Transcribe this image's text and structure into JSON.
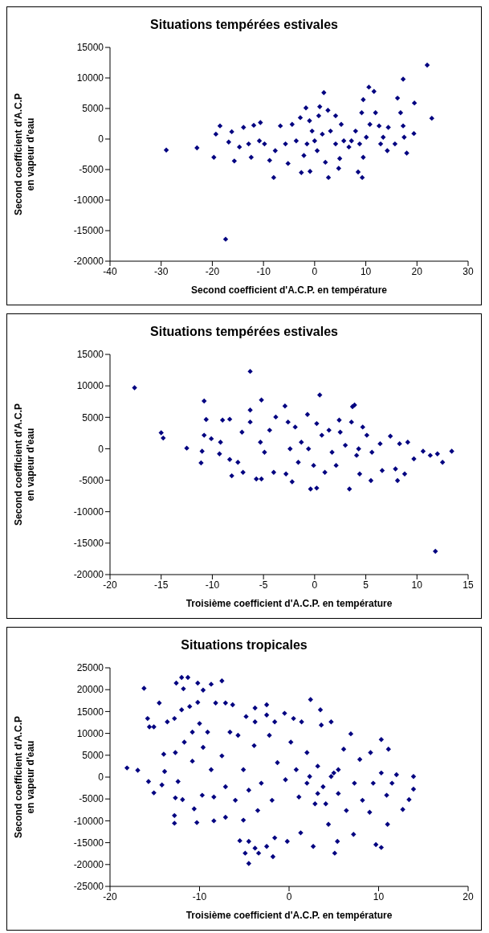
{
  "chart_data": [
    {
      "type": "scatter",
      "title": "Situations tempérées estivales",
      "xlabel": "Second coefficient d'A.C.P. en température",
      "ylabel": "Second coefficient d'A.C.P\nen vapeur d'eau",
      "xlim": [
        -40,
        30
      ],
      "xticks": [
        -40,
        -30,
        -20,
        -10,
        0,
        10,
        20,
        30
      ],
      "ylim": [
        -20000,
        15000
      ],
      "yticks": [
        -20000,
        -15000,
        -10000,
        -5000,
        0,
        5000,
        10000,
        15000
      ],
      "grid": false,
      "legend": false,
      "marker": "diamond",
      "series": [
        {
          "color": "#000080",
          "x": [
            -29,
            -23,
            -17.4,
            22,
            17.3,
            22.9,
            19.5,
            19.4,
            16.2,
            10.6,
            11.6,
            1.8,
            -1.7,
            1,
            2.6,
            9.5,
            9.2,
            11.9,
            16.8,
            18,
            -8,
            -2.6,
            -0.9,
            2.7,
            4.7,
            9.3,
            8.5,
            -18.5,
            -19.3,
            -19.7,
            -16.8,
            -15.7,
            -16.2,
            -13.9,
            -11.9,
            -10.6,
            -14.7,
            -12.4,
            -9.8,
            -8.8,
            -6.7,
            -5.2,
            -4.4,
            -2.8,
            -1,
            0,
            -0.5,
            0.5,
            1.5,
            0.8,
            2.1,
            4.1,
            5.2,
            4.9,
            5.7,
            6.7,
            8,
            8.8,
            9.5,
            10.1,
            10.8,
            12.9,
            12.6,
            14.2,
            14.4,
            15.7,
            17.5,
            17.3,
            13.4,
            -3.6,
            -5.7,
            -7.7,
            -10.8,
            -12.9,
            -1.5,
            3.1,
            7.2,
            -2.1,
            4.1
          ],
          "values": [
            -1800,
            -1450,
            -16400,
            12100,
            9800,
            3400,
            5900,
            900,
            6700,
            8500,
            7800,
            7600,
            5100,
            5300,
            4700,
            6450,
            4300,
            4300,
            4300,
            -2300,
            -6300,
            -5500,
            -5300,
            -6300,
            -4800,
            -6300,
            -5400,
            2150,
            800,
            -3000,
            -500,
            -3600,
            1200,
            1900,
            2250,
            2700,
            -1300,
            -3000,
            -800,
            -3500,
            2150,
            -4000,
            2400,
            3500,
            3000,
            -300,
            1300,
            -1900,
            800,
            3800,
            -3800,
            3800,
            2400,
            -3200,
            -300,
            -1300,
            1300,
            -800,
            -3000,
            300,
            2400,
            -800,
            2150,
            -1900,
            1900,
            -800,
            300,
            2150,
            300,
            -300,
            -800,
            -1900,
            -300,
            -800,
            -800,
            1300,
            -300,
            -2700,
            -800
          ]
        }
      ]
    },
    {
      "type": "scatter",
      "title": "Situations tempérées estivales",
      "xlabel": "Troisième coefficient d'A.C.P. en température",
      "ylabel": "Second coefficient d'A.C.P\nen vapeur d'eau",
      "xlim": [
        -20,
        15
      ],
      "xticks": [
        -20,
        -15,
        -10,
        -5,
        0,
        5,
        10,
        15
      ],
      "ylim": [
        -20000,
        15000
      ],
      "yticks": [
        -20000,
        -15000,
        -10000,
        -5000,
        0,
        5000,
        10000,
        15000
      ],
      "grid": false,
      "legend": false,
      "marker": "diamond",
      "series": [
        {
          "color": "#000080",
          "x": [
            -17.6,
            -15,
            -14.8,
            -12.5,
            -11.1,
            -10.8,
            -10.6,
            -10.8,
            -10.1,
            -11,
            -9.3,
            -9.2,
            -9,
            -8.3,
            -8.1,
            -8.3,
            -7.5,
            -7,
            -7.1,
            -6.3,
            -6.3,
            -6.3,
            -5.7,
            -5.2,
            -5.2,
            -5.3,
            -4.9,
            -4,
            -3.8,
            -4.4,
            -2.9,
            -2.6,
            -2.8,
            -2.2,
            -1.9,
            -1.3,
            -1.6,
            -0.7,
            -0.4,
            0.2,
            -0.6,
            0.2,
            0.5,
            -0.1,
            1,
            0.7,
            1.4,
            1.7,
            2.4,
            2.5,
            2.1,
            3,
            3.4,
            3.7,
            3.9,
            3.6,
            4.1,
            4.4,
            4.7,
            5.1,
            5.5,
            5.6,
            6.4,
            6.6,
            7.4,
            7.9,
            8.1,
            8.3,
            8.8,
            9.1,
            9.7,
            10.6,
            11.3,
            12,
            12.5,
            13.4,
            11.8,
            4.3,
            -2.4
          ],
          "values": [
            9700,
            2550,
            1700,
            100,
            -2250,
            7600,
            4650,
            2150,
            1600,
            -400,
            -800,
            1050,
            4550,
            4700,
            -4300,
            -1700,
            -2150,
            -3750,
            2650,
            12300,
            6150,
            4250,
            -4800,
            -4800,
            7750,
            1050,
            -550,
            -3750,
            5050,
            2950,
            6800,
            4250,
            -4000,
            -5250,
            3450,
            1050,
            -2150,
            5450,
            -6400,
            -6250,
            0,
            4000,
            8550,
            -2650,
            -3750,
            2150,
            2950,
            -550,
            4550,
            2650,
            -2650,
            550,
            -6400,
            6700,
            6950,
            4250,
            -1050,
            -4000,
            3450,
            2150,
            -5050,
            -550,
            800,
            -3450,
            2000,
            -3200,
            -5050,
            800,
            -4000,
            1050,
            -1600,
            -400,
            -1050,
            -800,
            -2150,
            -400,
            -16300,
            0,
            0
          ]
        }
      ]
    },
    {
      "type": "scatter",
      "title": "Situations tropicales",
      "xlabel": "Troisième coefficient d'A.C.P. en température",
      "ylabel": "Second coefficient d'A.C.P\nen vapeur d'eau",
      "xlim": [
        -20,
        20
      ],
      "xticks": [
        -20,
        -10,
        0,
        10,
        20
      ],
      "ylim": [
        -25000,
        25000
      ],
      "yticks": [
        -25000,
        -20000,
        -15000,
        -10000,
        -5000,
        0,
        5000,
        10000,
        15000,
        20000,
        25000
      ],
      "grid": false,
      "legend": false,
      "marker": "diamond",
      "series": [
        {
          "color": "#000080",
          "x": [
            -18.1,
            -16.9,
            -16.2,
            -15.7,
            -15.1,
            -15.8,
            -15.6,
            -15.1,
            -14.5,
            -14.2,
            -14,
            -13.9,
            -12.6,
            -12,
            -11.3,
            -11.8,
            -12.8,
            -13.6,
            -12.7,
            -12.8,
            -12.8,
            -12.7,
            -12.4,
            -11.9,
            -11.7,
            -12,
            -11.1,
            -10.2,
            -9.6,
            -8.7,
            -10.2,
            -10.3,
            -10.6,
            -10.8,
            -10,
            -10.8,
            -9.6,
            -9.7,
            -9.1,
            -8.7,
            -8.4,
            -8.2,
            -8.4,
            -7.5,
            -7.5,
            -7.1,
            -6.3,
            -6.6,
            -7.1,
            -7.1,
            -6,
            -5.7,
            -5.5,
            -5.1,
            -4.9,
            -4.5,
            -4.5,
            -4.8,
            -5.1,
            -4.5,
            -3.8,
            -3.8,
            -3.8,
            -3.4,
            -3.5,
            -3.9,
            -3.1,
            -2.5,
            -2.5,
            -2.5,
            -1.8,
            -2.2,
            -1.9,
            -1.6,
            -1.3,
            -1.6,
            -0.5,
            -0.2,
            -0.4,
            0.2,
            0.5,
            1.1,
            1.4,
            1.3,
            2,
            2.4,
            2.3,
            2.7,
            2.9,
            3.2,
            3.5,
            3.6,
            3.8,
            4.4,
            4.7,
            5,
            5.1,
            5.4,
            5.5,
            6.1,
            6.4,
            6.9,
            7.2,
            7.3,
            7.9,
            8.2,
            9,
            9.1,
            9.4,
            10.3,
            9.7,
            10.3,
            10.3,
            10.9,
            11.1,
            11,
            11.5,
            12,
            12.7,
            13.4,
            13.9,
            13.9,
            2,
            3.2,
            4.7,
            0.8,
            5.5,
            4.1
          ],
          "values": [
            2100,
            1550,
            20300,
            -1000,
            -3600,
            13400,
            11500,
            11500,
            16950,
            -1800,
            5250,
            1300,
            21500,
            22800,
            22800,
            20200,
            13400,
            12650,
            5600,
            -10550,
            -8800,
            -4750,
            -1000,
            -5150,
            8000,
            15400,
            16150,
            21500,
            19900,
            21250,
            17100,
            -10400,
            -7250,
            3650,
            12250,
            10300,
            6800,
            -4150,
            10300,
            1700,
            -10000,
            16950,
            -4550,
            4850,
            22000,
            16950,
            16550,
            10300,
            -2200,
            -9200,
            -5300,
            9550,
            -14550,
            -9850,
            -17400,
            -14700,
            -19750,
            13850,
            1700,
            -3000,
            15800,
            12650,
            -16250,
            -17400,
            -7650,
            7200,
            -1400,
            16550,
            14200,
            -15850,
            -18200,
            9550,
            -5300,
            -13900,
            3300,
            12650,
            14600,
            -14700,
            -600,
            8000,
            13400,
            -4550,
            12650,
            -12750,
            5600,
            17750,
            150,
            -15850,
            -6100,
            2500,
            15400,
            11900,
            -2200,
            -10800,
            12650,
            950,
            -17400,
            -14700,
            -3750,
            6400,
            -7650,
            9900,
            -13100,
            -1400,
            4050,
            -5300,
            -8050,
            5600,
            -1400,
            8600,
            -15450,
            -16100,
            950,
            -4150,
            6400,
            -10800,
            -1400,
            550,
            -7400,
            -5150,
            -2750,
            150,
            -1400,
            -3750,
            150,
            1700,
            1700,
            -6100
          ]
        }
      ]
    }
  ]
}
